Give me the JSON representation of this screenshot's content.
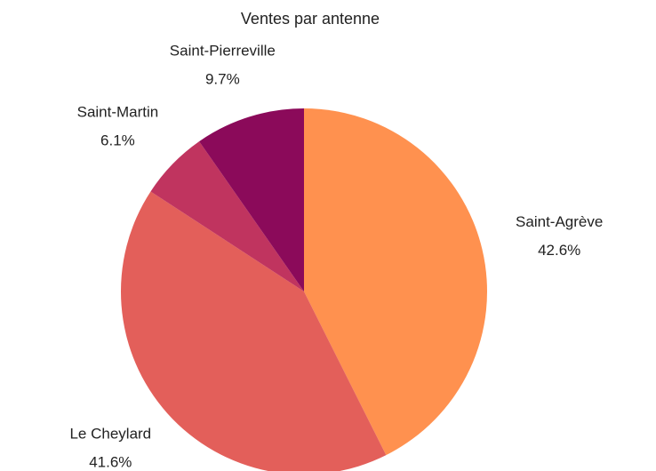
{
  "chart_data": {
    "type": "pie",
    "title": "Ventes par antenne",
    "categories": [
      "Saint-Agrève",
      "Le Cheylard",
      "Saint-Martin",
      "Saint-Pierreville"
    ],
    "values": [
      42.6,
      41.6,
      6.1,
      9.7
    ],
    "value_labels": [
      "42.6%",
      "41.6%",
      "6.1%",
      "9.7%"
    ],
    "colors": [
      "#ff914f",
      "#e35f5a",
      "#c0345f",
      "#8b0a5a"
    ]
  }
}
